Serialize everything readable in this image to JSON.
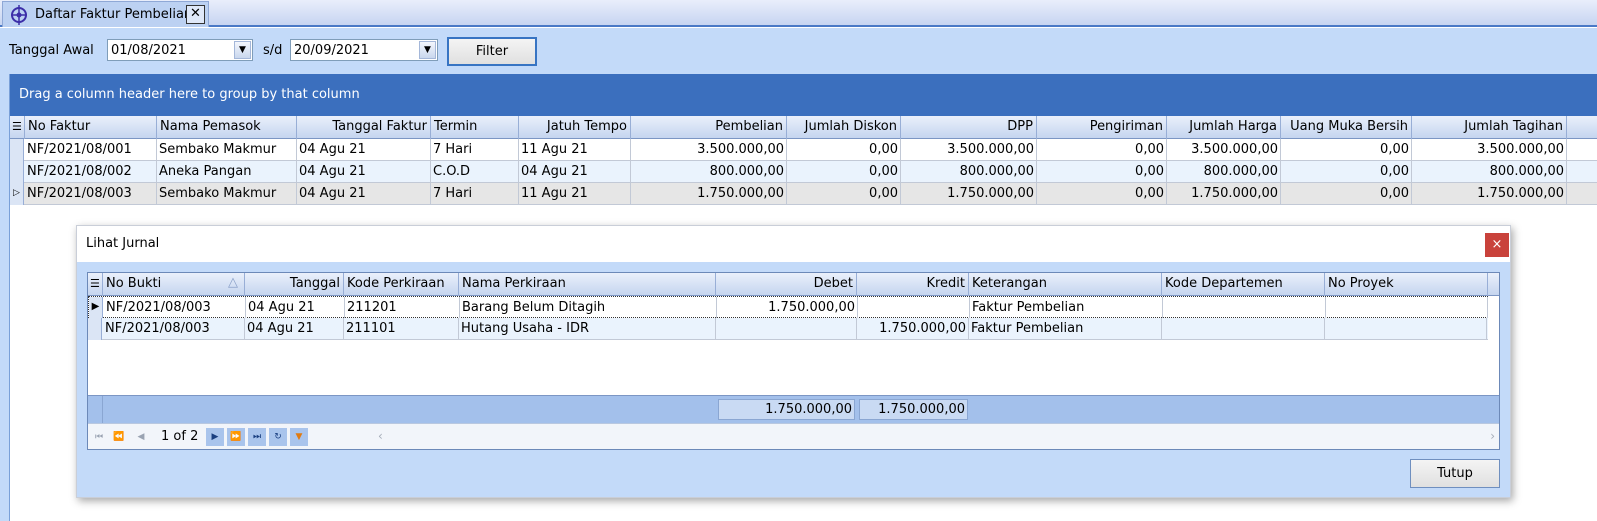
{
  "tab": {
    "title": "Daftar Faktur Pembelian",
    "close": "✕"
  },
  "filter": {
    "start_label": "Tanggal Awal",
    "start_value": "01/08/2021",
    "to_label": "s/d",
    "end_value": "20/09/2021",
    "button": "Filter"
  },
  "grid": {
    "group_hint": "Drag a column header here to group by that column",
    "columns": [
      "No Faktur",
      "Nama Pemasok",
      "Tanggal Faktur",
      "Termin",
      "Jatuh Tempo",
      "Pembelian",
      "Jumlah Diskon",
      "DPP",
      "Pengiriman",
      "Jumlah Harga",
      "Uang Muka Bersih",
      "Jumlah Tagihan"
    ],
    "rows": [
      [
        "NF/2021/08/001",
        "Sembako Makmur",
        "04 Agu 21",
        "7 Hari",
        "11 Agu 21",
        "3.500.000,00",
        "0,00",
        "3.500.000,00",
        "0,00",
        "3.500.000,00",
        "0,00",
        "3.500.000,00"
      ],
      [
        "NF/2021/08/002",
        "Aneka Pangan",
        "04 Agu 21",
        "C.O.D",
        "04 Agu 21",
        "800.000,00",
        "0,00",
        "800.000,00",
        "0,00",
        "800.000,00",
        "0,00",
        "800.000,00"
      ],
      [
        "NF/2021/08/003",
        "Sembako Makmur",
        "04 Agu 21",
        "7 Hari",
        "11 Agu 21",
        "1.750.000,00",
        "0,00",
        "1.750.000,00",
        "0,00",
        "1.750.000,00",
        "0,00",
        "1.750.000,00"
      ]
    ]
  },
  "dialog": {
    "title": "Lihat Jurnal",
    "close": "×",
    "columns": [
      "No Bukti",
      "Tanggal",
      "Kode Perkiraan",
      "Nama Perkiraan",
      "Debet",
      "Kredit",
      "Keterangan",
      "Kode Departemen",
      "No Proyek"
    ],
    "sort_indicator": "△",
    "rows": [
      [
        "NF/2021/08/003",
        "04 Agu 21",
        "211201",
        "Barang Belum Ditagih",
        "1.750.000,00",
        "",
        "Faktur Pembelian",
        "",
        ""
      ],
      [
        "NF/2021/08/003",
        "04 Agu 21",
        "211101",
        "Hutang Usaha - IDR",
        "",
        "1.750.000,00",
        "Faktur Pembelian",
        "",
        ""
      ]
    ],
    "total_debet": "1.750.000,00",
    "total_kredit": "1.750.000,00",
    "page": "1 of 2",
    "close_button": "Tutup"
  },
  "colors": {
    "group_bar": "#3b6fbe",
    "panel": "#c3daf9",
    "close_red": "#c9423b"
  }
}
